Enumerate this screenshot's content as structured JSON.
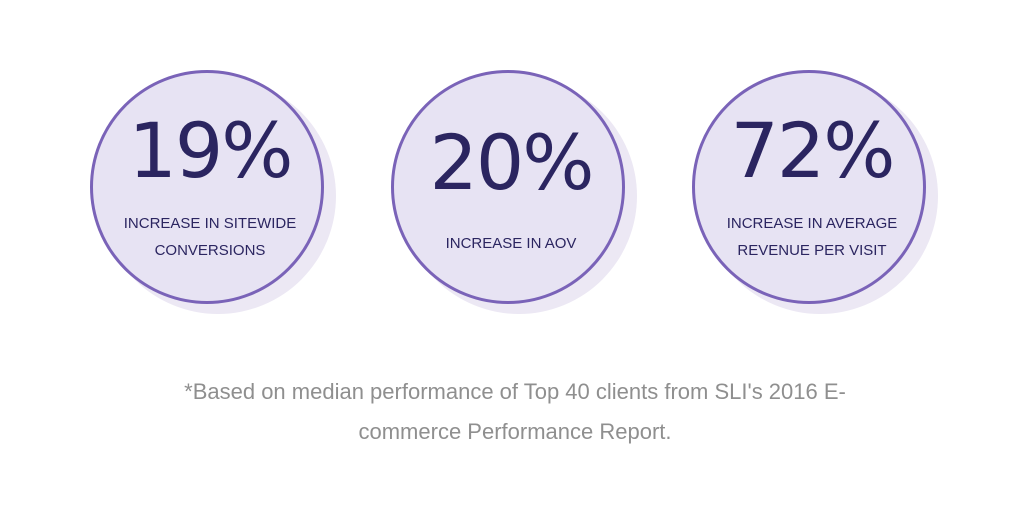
{
  "stats": [
    {
      "value": "19%",
      "label_line1": "INCREASE IN SITEWIDE",
      "label_line2": "CONVERSIONS"
    },
    {
      "value": "20%",
      "label_line1": "INCREASE IN AOV",
      "label_line2": ""
    },
    {
      "value": "72%",
      "label_line1": "INCREASE IN AVERAGE",
      "label_line2": "REVENUE PER VISIT"
    }
  ],
  "footnote": {
    "line1": "*Based on median performance of Top 40 clients from SLI's 2016 E-",
    "line2": "commerce Performance Report."
  },
  "colors": {
    "ring": "#7a63b8",
    "circle_fill": "#e7e3f3",
    "shadow": "#ece8f4",
    "text_dark": "#2b2560",
    "footnote_text": "#8f8f8f"
  }
}
